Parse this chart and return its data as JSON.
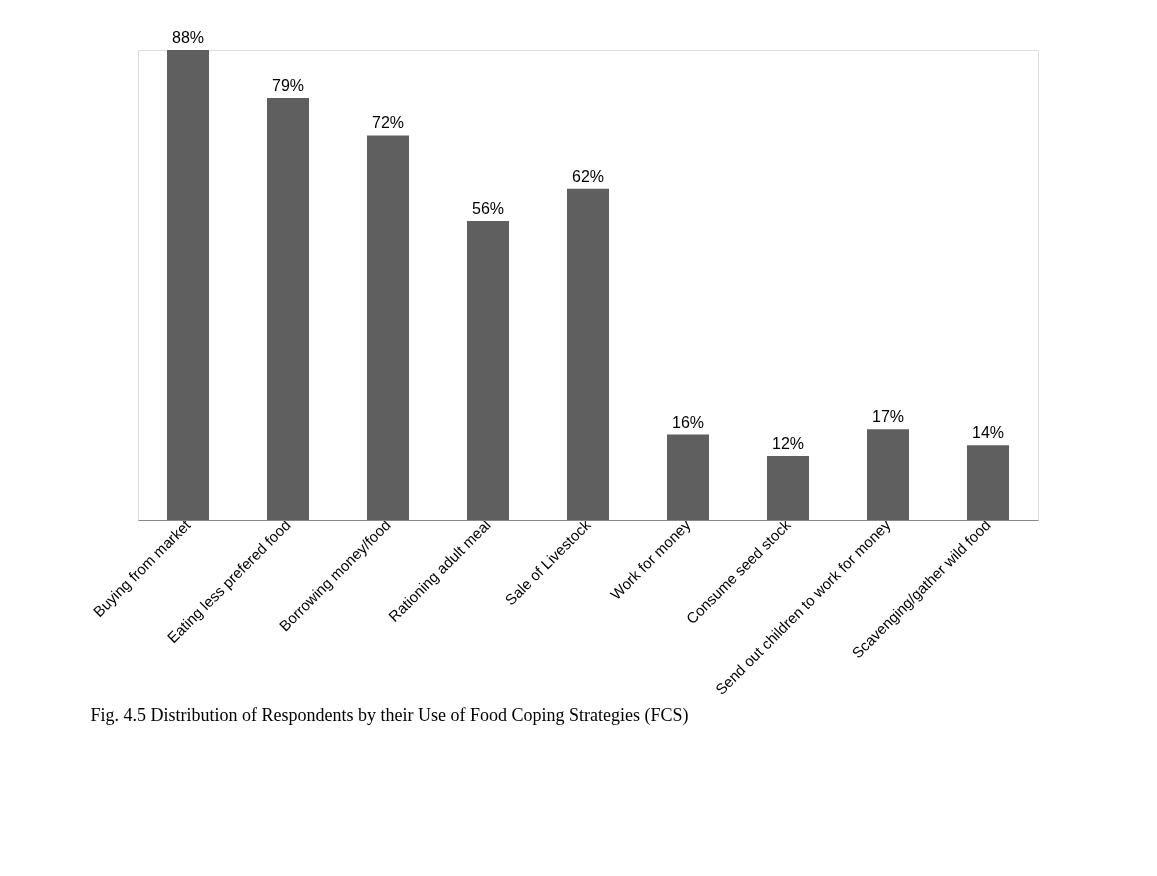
{
  "chart_data": {
    "type": "bar",
    "categories": [
      "Buying from market",
      "Eating less prefered food",
      "Borrowing money/food",
      "Rationing adult meal",
      "Sale of Livestock",
      "Work for money",
      "Consume seed stock",
      "Send out children to work for money",
      "Scavenging/gather wild food"
    ],
    "values": [
      88,
      79,
      72,
      56,
      62,
      16,
      12,
      17,
      14
    ],
    "value_labels": [
      "88%",
      "79%",
      "72%",
      "56%",
      "62%",
      "16%",
      "12%",
      "17%",
      "14%"
    ],
    "color": "#5f5f5f",
    "annotations": [
      "Fig. 4.5 Distribution of Respondents by their Use of Food Coping Strategies (FCS)"
    ]
  }
}
